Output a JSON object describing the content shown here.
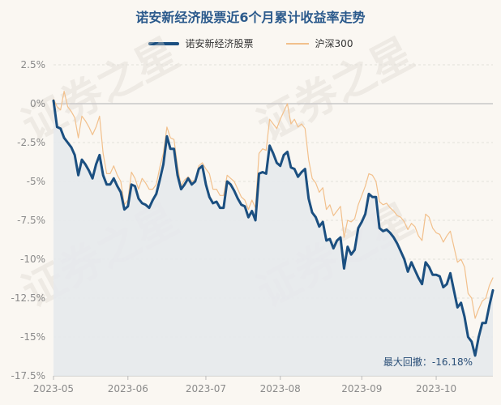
{
  "chart_data": {
    "type": "line",
    "title": "诺安新经济股票近6个月累计收益率走势",
    "legend_position": "top-center",
    "grid": true,
    "xlabel": "",
    "ylabel": "",
    "ylim": [
      -17.5,
      3
    ],
    "yticks": [
      {
        "value": 2.5,
        "label": "2.5%"
      },
      {
        "value": 0,
        "label": "0%"
      },
      {
        "value": -2.5,
        "label": "-2.5%"
      },
      {
        "value": -5,
        "label": "-5%"
      },
      {
        "value": -7.5,
        "label": "-7.5%"
      },
      {
        "value": -10,
        "label": "-10%"
      },
      {
        "value": -12.5,
        "label": "-12.5%"
      },
      {
        "value": -15,
        "label": "-15%"
      },
      {
        "value": -17.5,
        "label": "-17.5%"
      }
    ],
    "xticks": [
      {
        "label": "2023-05",
        "index": 0
      },
      {
        "label": "2023-06",
        "index": 21
      },
      {
        "label": "2023-07",
        "index": 43
      },
      {
        "label": "2023-08",
        "index": 64
      },
      {
        "label": "2023-09",
        "index": 87
      },
      {
        "label": "2023-10",
        "index": 108
      }
    ],
    "series": [
      {
        "name": "诺安新经济股票",
        "color": "#1b4f80",
        "fill": "#e6e9ec",
        "values": [
          0.2,
          -1.5,
          -1.6,
          -2.2,
          -2.5,
          -2.8,
          -3.3,
          -4.6,
          -3.6,
          -3.9,
          -4.3,
          -4.8,
          -3.9,
          -3.3,
          -4.6,
          -5.2,
          -5.2,
          -4.8,
          -5.3,
          -5.7,
          -6.8,
          -6.6,
          -5.2,
          -5.3,
          -6.1,
          -6.4,
          -6.5,
          -6.7,
          -6.2,
          -5.8,
          -4.9,
          -3.9,
          -2.1,
          -2.9,
          -2.9,
          -4.6,
          -5.5,
          -5.2,
          -4.8,
          -5.2,
          -5.0,
          -4.2,
          -4.0,
          -5.2,
          -6.0,
          -6.4,
          -6.3,
          -6.7,
          -6.7,
          -5.0,
          -5.2,
          -5.6,
          -6.1,
          -6.5,
          -6.6,
          -7.3,
          -6.9,
          -7.5,
          -4.5,
          -4.4,
          -4.5,
          -2.7,
          -3.2,
          -3.8,
          -4.0,
          -3.3,
          -3.1,
          -4.1,
          -4.2,
          -4.7,
          -4.4,
          -4.2,
          -6.1,
          -7.0,
          -7.3,
          -7.9,
          -7.6,
          -8.8,
          -8.7,
          -9.3,
          -8.8,
          -8.6,
          -10.6,
          -9.2,
          -9.7,
          -9.4,
          -8.0,
          -7.6,
          -7.1,
          -5.8,
          -6.0,
          -6.0,
          -8.0,
          -8.2,
          -8.1,
          -8.3,
          -8.6,
          -9.0,
          -9.5,
          -10.0,
          -10.8,
          -10.2,
          -10.7,
          -11.2,
          -11.6,
          -10.2,
          -10.5,
          -11.0,
          -11.0,
          -11.1,
          -11.8,
          -11.6,
          -10.9,
          -12.0,
          -13.1,
          -12.8,
          -13.7,
          -15.0,
          -15.3,
          -16.2,
          -15.0,
          -14.1,
          -14.1,
          -13.0,
          -12.0
        ]
      },
      {
        "name": "沪深300",
        "color": "#f2c08c",
        "values": [
          0.3,
          -0.2,
          -0.4,
          0.8,
          -0.2,
          -0.5,
          -0.9,
          -2.2,
          -0.8,
          -1.1,
          -1.5,
          -2.0,
          -1.5,
          -0.8,
          -3.2,
          -4.5,
          -4.5,
          -4.0,
          -4.6,
          -5.0,
          -6.5,
          -6.2,
          -4.4,
          -4.8,
          -5.5,
          -4.8,
          -5.1,
          -5.5,
          -5.5,
          -5.2,
          -4.1,
          -3.2,
          -1.5,
          -2.2,
          -2.3,
          -4.0,
          -5.3,
          -4.9,
          -4.7,
          -5.0,
          -4.9,
          -4.0,
          -3.8,
          -4.2,
          -4.5,
          -5.5,
          -5.5,
          -5.9,
          -5.9,
          -4.6,
          -4.8,
          -5.0,
          -5.5,
          -6.0,
          -6.2,
          -6.8,
          -6.2,
          -6.7,
          -3.2,
          -2.9,
          -3.0,
          -1.0,
          -1.3,
          -1.6,
          -1.0,
          -0.5,
          0.0,
          -1.3,
          -1.0,
          -1.5,
          -1.3,
          -1.6,
          -3.6,
          -4.8,
          -5.1,
          -5.7,
          -5.4,
          -6.8,
          -6.5,
          -7.2,
          -6.9,
          -6.6,
          -8.6,
          -7.5,
          -7.6,
          -7.4,
          -6.5,
          -5.9,
          -5.3,
          -4.5,
          -4.6,
          -5.0,
          -6.3,
          -6.5,
          -6.4,
          -6.7,
          -6.9,
          -7.2,
          -7.3,
          -7.6,
          -8.1,
          -7.7,
          -7.9,
          -8.5,
          -8.8,
          -7.1,
          -7.3,
          -8.0,
          -8.3,
          -8.4,
          -8.9,
          -8.5,
          -8.2,
          -9.2,
          -10.2,
          -10.0,
          -10.5,
          -12.2,
          -12.5,
          -13.8,
          -13.2,
          -12.7,
          -12.5,
          -11.7,
          -11.2
        ]
      }
    ],
    "annotation": {
      "text": "最大回撤：-16.18%"
    },
    "watermark": {
      "text": "证券之星"
    }
  }
}
